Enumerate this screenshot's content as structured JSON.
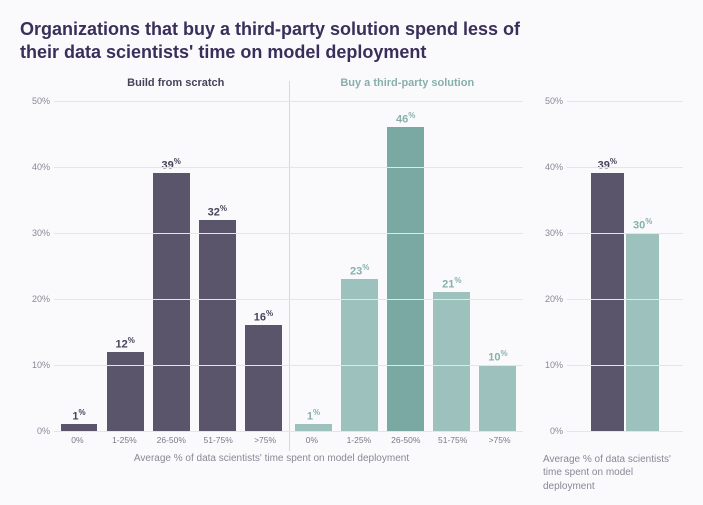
{
  "title": "Organizations that buy a third-party solution spend less of their data scientists' time on model deployment",
  "colors": {
    "build": "#5b556b",
    "buy": "#9dc1bd",
    "buy_accent": "#7aa8a3",
    "text_build": "#47425a",
    "text_buy": "#87b0ac",
    "grid": "#e5e4ea",
    "tick": "#8a8796"
  },
  "main": {
    "subtitle_left": "Build from scratch",
    "subtitle_right": "Buy a third-party solution",
    "ylim": [
      0,
      50
    ],
    "ytick_step": 10,
    "categories": [
      "0%",
      "1-25%",
      "26-50%",
      "51-75%",
      ">75%"
    ],
    "build_values": [
      1,
      12,
      39,
      32,
      16
    ],
    "buy_values": [
      1,
      23,
      46,
      21,
      10
    ],
    "x_caption": "Average % of data scientists' time spent on model deployment"
  },
  "side": {
    "ylim": [
      0,
      50
    ],
    "ytick_step": 10,
    "values": [
      39,
      30
    ],
    "caption": "Average % of data scientists' time spent on model deployment"
  }
}
